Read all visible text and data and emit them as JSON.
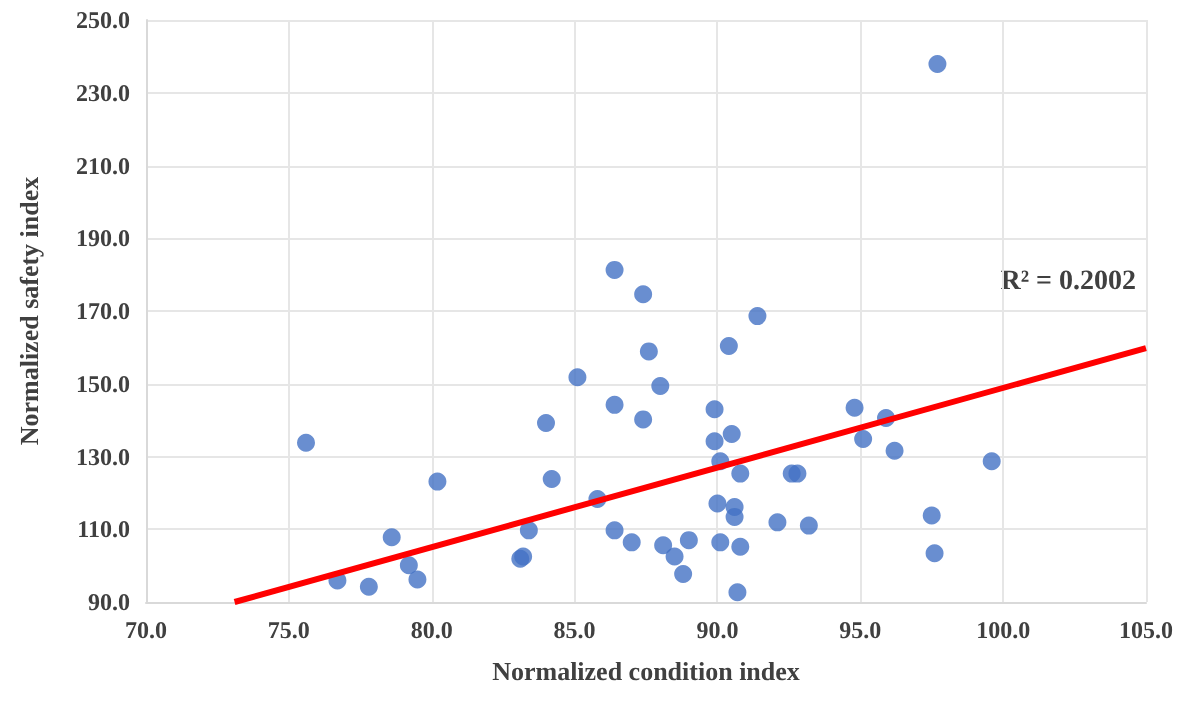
{
  "chart_data": {
    "type": "scatter",
    "xlabel": "Normalized condition index",
    "ylabel": "Normalized safety index",
    "annotations": [
      "R² = 0.2002"
    ],
    "series": [
      {
        "color": "#4472c4",
        "marker": "circle",
        "x": [
          86.4,
          75.6,
          85.1,
          86.4,
          84.0,
          80.2,
          84.2,
          85.8,
          83.4,
          86.4,
          87.0,
          78.6,
          79.2,
          79.5,
          76.7,
          77.8,
          83.1,
          83.2,
          87.4,
          87.6,
          88.0,
          87.4,
          91.4,
          90.4,
          89.9,
          89.9,
          90.5,
          90.1,
          90.8,
          92.6,
          92.8,
          94.8,
          95.9,
          95.1,
          96.2,
          99.6,
          88.1,
          88.5,
          88.8,
          89.0,
          90.0,
          90.6,
          90.6,
          90.1,
          90.8,
          90.7,
          92.1,
          93.2,
          97.5,
          97.6,
          97.7
        ],
        "values": [
          181.3,
          133.8,
          151.8,
          144.2,
          139.2,
          123.1,
          123.8,
          118.3,
          109.7,
          109.7,
          106.4,
          107.8,
          100.1,
          96.2,
          95.9,
          94.2,
          101.9,
          102.5,
          174.6,
          158.9,
          149.4,
          140.2,
          168.6,
          160.4,
          143.0,
          134.2,
          136.2,
          128.7,
          125.3,
          125.3,
          125.3,
          143.4,
          140.6,
          134.8,
          131.6,
          128.7,
          105.6,
          102.5,
          97.7,
          107.0,
          117.1,
          116.1,
          113.4,
          106.4,
          105.2,
          92.7,
          111.9,
          111.0,
          113.8,
          103.4,
          237.9
        ]
      },
      {
        "type": "line",
        "color": "#ff0000",
        "marker": "none",
        "x": [
          73.1,
          105.0
        ],
        "values": [
          90.0,
          159.8
        ]
      }
    ],
    "xlim": [
      70,
      105
    ],
    "xticks": [
      {
        "value": 70,
        "label": "70.0"
      },
      {
        "value": 75,
        "label": "75.0"
      },
      {
        "value": 80,
        "label": "80.0"
      },
      {
        "value": 85,
        "label": "85.0"
      },
      {
        "value": 90,
        "label": "90.0"
      },
      {
        "value": 95,
        "label": "95.0"
      },
      {
        "value": 100,
        "label": "100.0"
      },
      {
        "value": 105,
        "label": "105.0"
      }
    ],
    "ylim": [
      90,
      250
    ],
    "yticks": [
      {
        "value": 90,
        "label": "90.0"
      },
      {
        "value": 110,
        "label": "110.0"
      },
      {
        "value": 130,
        "label": "130.0"
      },
      {
        "value": 150,
        "label": "150.0"
      },
      {
        "value": 170,
        "label": "170.0"
      },
      {
        "value": 190,
        "label": "190.0"
      },
      {
        "value": 210,
        "label": "210.0"
      },
      {
        "value": 230,
        "label": "230.0"
      },
      {
        "value": 250,
        "label": "250.0"
      }
    ],
    "grid": true
  }
}
